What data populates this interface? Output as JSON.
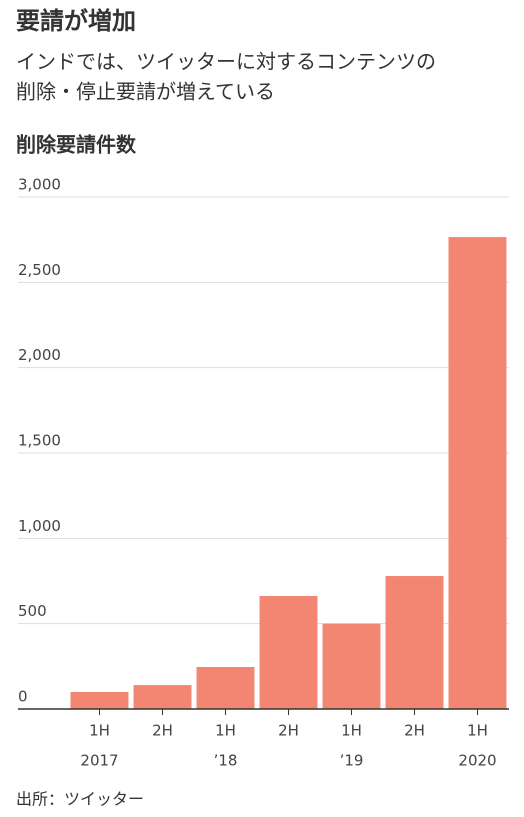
{
  "chart_data": {
    "type": "bar",
    "title": "要請が増加",
    "subtitle": [
      "インドでは、ツイッターに対するコンテンツの",
      "削除・停止要請が増えている"
    ],
    "y_label": "削除要請件数",
    "source": "出所：ツイッター",
    "categories": [
      "1H",
      "2H",
      "1H",
      "2H",
      "1H",
      "2H",
      "1H"
    ],
    "category_years": [
      "2017",
      null,
      "’18",
      null,
      "’19",
      null,
      "2020"
    ],
    "values": [
      100,
      140,
      246,
      662,
      500,
      779,
      2765
    ],
    "color": "#f28673",
    "ylim": [
      0,
      3000
    ],
    "yticks": [
      0,
      500,
      {
        "value": 1000,
        "label": "1,000"
      },
      {
        "value": 1500,
        "label": "1,500"
      },
      {
        "value": 2000,
        "label": "2,000"
      },
      {
        "value": 2500,
        "label": "2,500"
      },
      {
        "value": 3000,
        "label": "3,000"
      }
    ],
    "grid": true
  }
}
